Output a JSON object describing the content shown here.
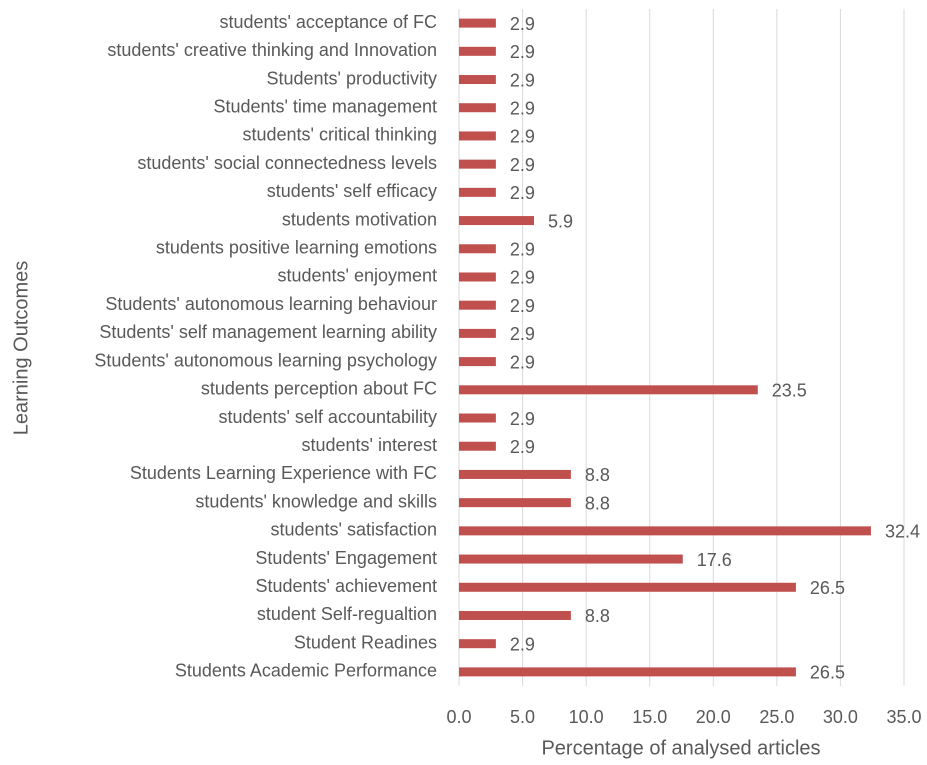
{
  "chart_data": {
    "type": "bar",
    "orientation": "horizontal",
    "x_label": "Percentage of analysed articles",
    "y_label": "Learning Outcomes",
    "categories": [
      "students' acceptance of FC",
      "students' creative thinking and Innovation",
      "Students' productivity",
      "Students' time management",
      "students' critical thinking",
      "students' social connectedness levels",
      "students' self efficacy",
      "students motivation",
      "students positive learning emotions",
      "students' enjoyment",
      "Students' autonomous learning behaviour",
      "Students' self management learning ability",
      "Students' autonomous learning psychology",
      "students perception about FC",
      "students' self accountability",
      "students' interest",
      "Students Learning Experience with FC",
      "students' knowledge and skills",
      "students' satisfaction",
      "Students' Engagement",
      "Students' achievement",
      "student Self-regualtion",
      "Student Readines",
      "Students Academic Performance"
    ],
    "values": [
      2.9,
      2.9,
      2.9,
      2.9,
      2.9,
      2.9,
      2.9,
      5.9,
      2.9,
      2.9,
      2.9,
      2.9,
      2.9,
      23.5,
      2.9,
      2.9,
      8.8,
      8.8,
      32.4,
      17.6,
      26.5,
      8.8,
      2.9,
      26.5
    ],
    "color": "#c0504d",
    "xlim": [
      0,
      35
    ],
    "xticks": [
      {
        "value": 0,
        "label": "0.0"
      },
      {
        "value": 5,
        "label": "5.0"
      },
      {
        "value": 10,
        "label": "10.0"
      },
      {
        "value": 15,
        "label": "15.0"
      },
      {
        "value": 20,
        "label": "20.0"
      },
      {
        "value": 25,
        "label": "25.0"
      },
      {
        "value": 30,
        "label": "30.0"
      },
      {
        "value": 35,
        "label": "35.0"
      }
    ],
    "grid": true
  }
}
